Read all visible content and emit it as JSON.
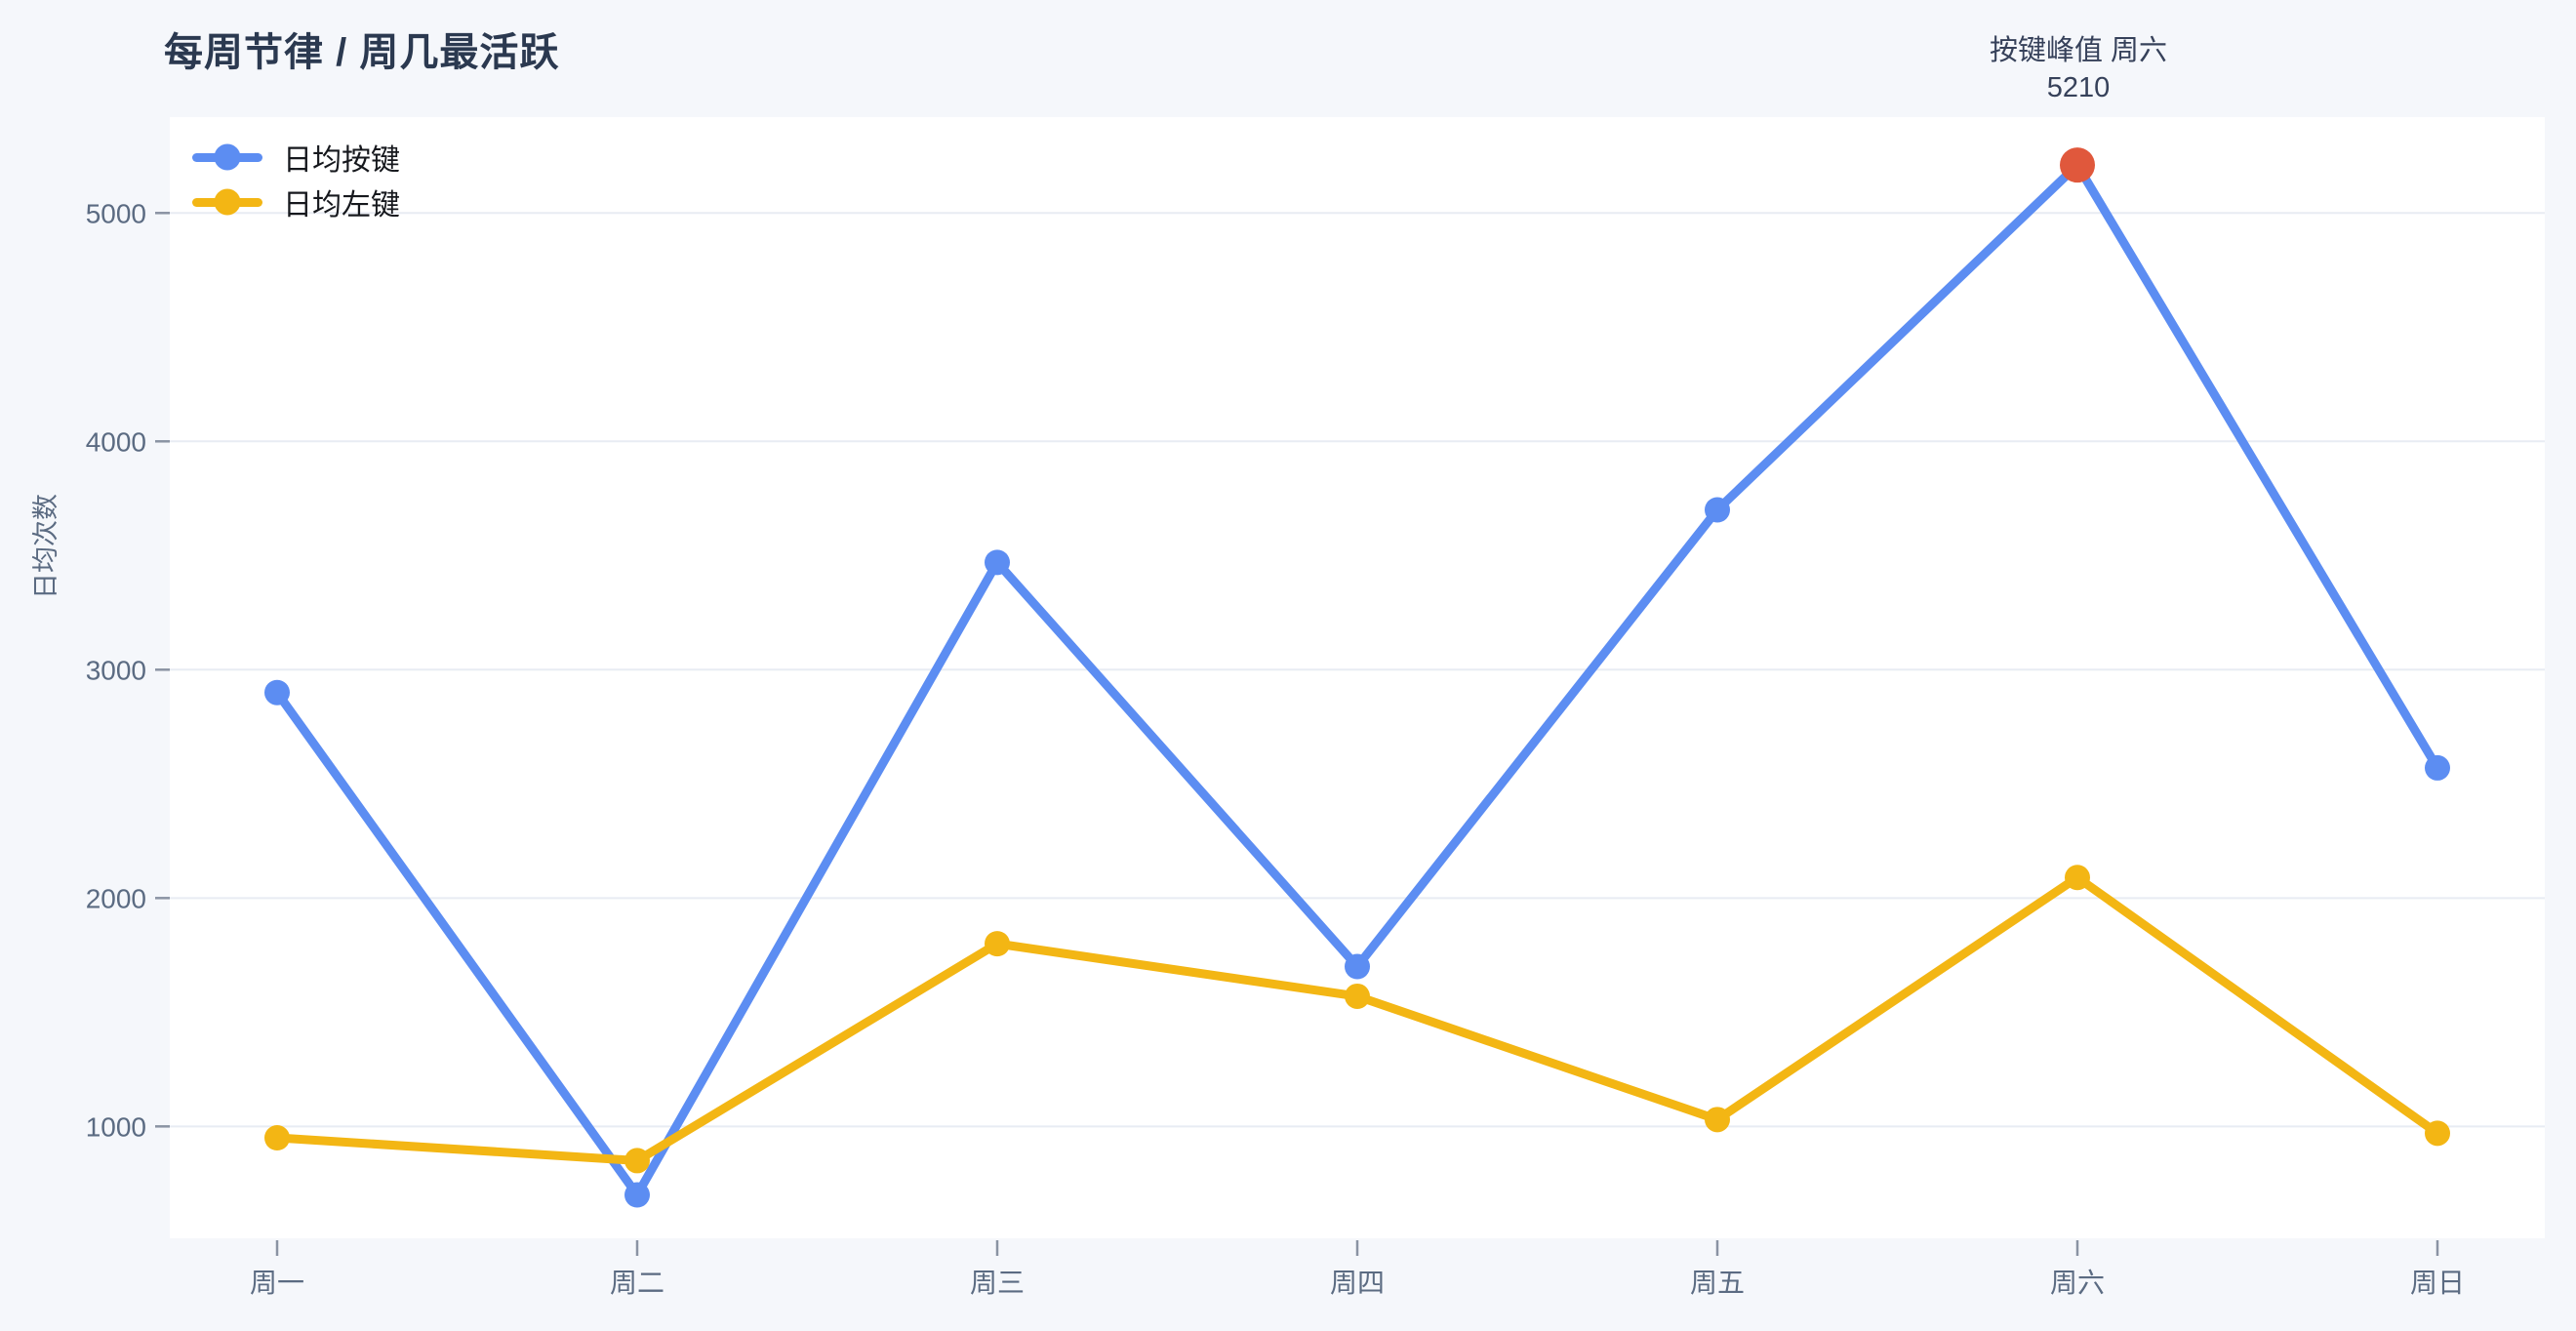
{
  "chart_data": {
    "type": "line",
    "title": "每周节律 / 周几最活跃",
    "ylabel": "日均次数",
    "xlabel": "",
    "categories": [
      "周一",
      "周二",
      "周三",
      "周四",
      "周五",
      "周六",
      "周日"
    ],
    "series": [
      {
        "name": "日均按键",
        "color": "#5c8df2",
        "values": [
          2900,
          700,
          3470,
          1700,
          3700,
          5210,
          2570
        ]
      },
      {
        "name": "日均左键",
        "color": "#f3b614",
        "values": [
          950,
          850,
          1800,
          1570,
          1030,
          2090,
          970
        ]
      }
    ],
    "annotation": {
      "label": "按键峰值 周六",
      "value": "5210",
      "category": "周六",
      "series": "日均按键",
      "marker_color": "#e0583c"
    },
    "yticks": [
      1000,
      2000,
      3000,
      4000,
      5000
    ],
    "ylim": [
      510,
      5420
    ],
    "grid": true,
    "legend_position": "top-left",
    "colors": {
      "background": "#f5f7fb",
      "plot_background": "#ffffff",
      "grid": "#e8ecf3",
      "tick": "#8a93a3",
      "tick_label": "#5b6b82",
      "title_text": "#2b3950",
      "annotation_text": "#36415a",
      "legend_text": "#16181d"
    }
  }
}
